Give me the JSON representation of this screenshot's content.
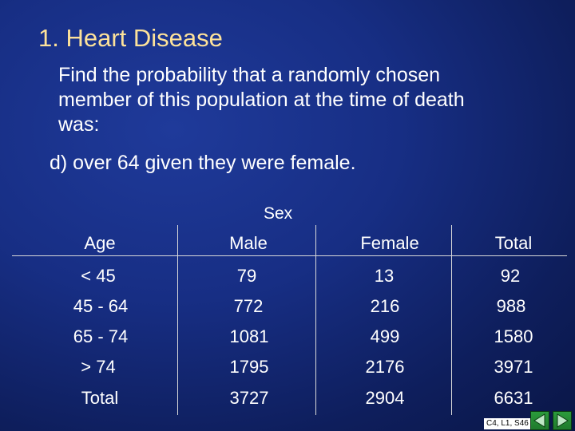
{
  "slide": {
    "title": "1.  Heart Disease",
    "question_lines": [
      "Find the probability that a randomly chosen",
      "member of this population at the time of death",
      "was:"
    ],
    "part": "d)   over 64 given they were female."
  },
  "table": {
    "group_header": "Sex",
    "columns": [
      "Age",
      "Male",
      "Female",
      "Total"
    ],
    "rows": [
      [
        "< 45",
        "79",
        "13",
        "92"
      ],
      [
        "45 - 64",
        "772",
        "216",
        "988"
      ],
      [
        "65 - 74",
        "1081",
        "499",
        "1580"
      ],
      [
        "> 74",
        "1795",
        "2176",
        "3971"
      ],
      [
        "Total",
        "3727",
        "2904",
        "6631"
      ]
    ]
  },
  "footer": {
    "slide_ref": "C4, L1, S46"
  },
  "nav": {
    "prev_icon": "arrow-left-icon",
    "next_icon": "arrow-right-icon",
    "color": "#2b9b3c"
  }
}
